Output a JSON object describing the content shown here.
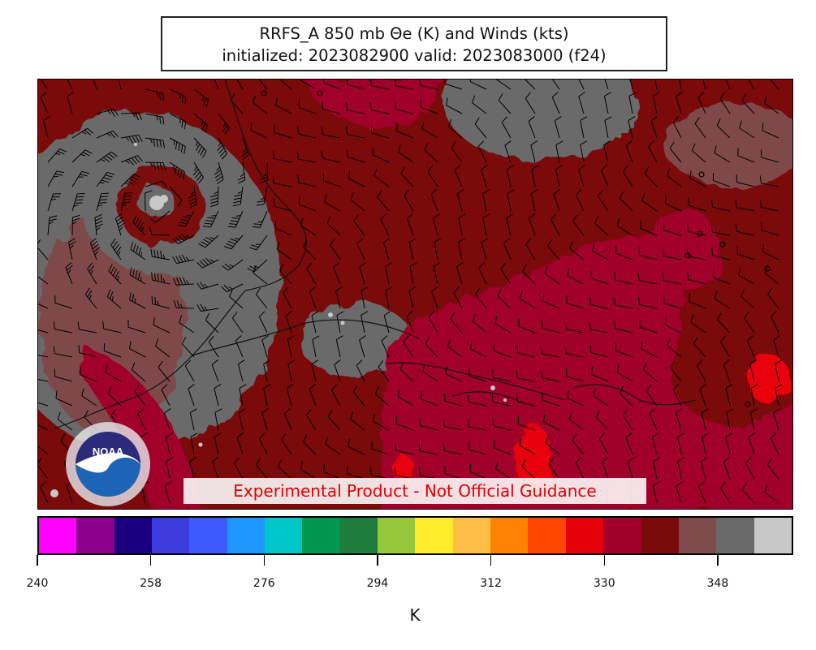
{
  "title": {
    "line1": "RRFS_A 850 mb Θe (K) and Winds (kts)",
    "line2": "initialized: 2023082900 valid: 2023083000 (f24)"
  },
  "disclaimer": "Experimental Product - Not Official Guidance",
  "logo": {
    "name": "noaa-logo",
    "text": "NOAA"
  },
  "map": {
    "field": "Equivalent potential temperature at 850 mb",
    "overlay": "wind barbs",
    "colors": {
      "dark_red": "#7b0a0a",
      "crimson": "#a0002a",
      "maroon_gray": "#7f4a4a",
      "gray": "#6a6a6a",
      "light_gray": "#c8c8c8",
      "red": "#e8000a"
    }
  },
  "colorbar": {
    "unit_label": "K",
    "tick_labels": [
      "240",
      "258",
      "276",
      "294",
      "312",
      "330",
      "348"
    ],
    "colors": [
      "#ff00ff",
      "#8b008b",
      "#1a0080",
      "#3c3cdc",
      "#3c5aff",
      "#1e96ff",
      "#00c8c8",
      "#009650",
      "#1e7d3c",
      "#96c83c",
      "#ffeb28",
      "#ffbe46",
      "#ff8200",
      "#ff4600",
      "#e6000a",
      "#a0002a",
      "#7b0a0a",
      "#7f4a4a",
      "#6a6a6a",
      "#c8c8c8"
    ]
  }
}
